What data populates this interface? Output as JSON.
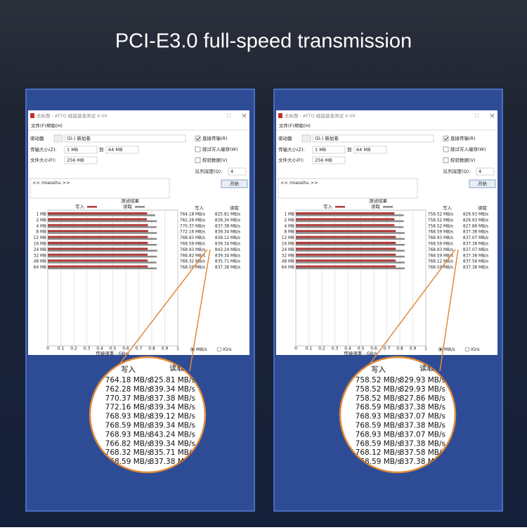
{
  "title": "PCI-E3.0 full-speed transmission",
  "xticks": [
    0,
    {
      "value": 100,
      "label": "0.1"
    },
    {
      "value": 200,
      "label": "0.2"
    },
    {
      "value": 300,
      "label": "0.3"
    },
    {
      "value": 400,
      "label": "0.4"
    },
    {
      "value": 500,
      "label": "0.5"
    },
    {
      "value": 600,
      "label": "0.6"
    },
    {
      "value": 700,
      "label": "0.7"
    },
    {
      "value": 800,
      "label": "0.8"
    },
    {
      "value": 900,
      "label": "0.9"
    },
    {
      "value": 1000,
      "label": "1"
    }
  ],
  "xlim": [
    0,
    1000
  ],
  "panels": [
    {
      "window_title": "无标题 - ATTO 磁盘基准测试 4.00",
      "menu": [
        "文件(F)",
        "帮助(H)"
      ],
      "drive_label": "驱动器",
      "drive_value": "(D:) 新加卷",
      "transfer_size_label": "传输大小(Z):",
      "transfer_from": "1 MB",
      "to_label": "到",
      "transfer_to": "64 MB",
      "file_size_label": "文件大小(F):",
      "file_size": "256 MB",
      "options": [
        {
          "label": "直接传输(R)",
          "checked": true
        },
        {
          "label": "绕过写入缓存(W)",
          "checked": false
        },
        {
          "label": "校验数据(V)",
          "checked": false
        }
      ],
      "queue_label": "队列深度(Q):",
      "queue": "4",
      "start": "开始",
      "log": "<< miaoshu >>",
      "results_title": "测试结果",
      "write_legend": "写入",
      "read_legend": "读取",
      "write_color": "#b03a3a",
      "read_color": "#8a8a8a",
      "x_axis_label": "传输速率 - GB/s",
      "radio": [
        "MB/s",
        "IO/s"
      ],
      "rows": [
        {
          "size": "1 MB",
          "write": 764.18,
          "write_label": "764.18 MB/s",
          "read": 825.81,
          "read_label": "825.81 MB/s"
        },
        {
          "size": "2 MB",
          "write": 762.28,
          "write_label": "762.28 MB/s",
          "read": 839.34,
          "read_label": "839.34 MB/s"
        },
        {
          "size": "4 MB",
          "write": 770.37,
          "write_label": "770.37 MB/s",
          "read": 837.38,
          "read_label": "837.38 MB/s"
        },
        {
          "size": "8 MB",
          "write": 772.16,
          "write_label": "772.16 MB/s",
          "read": 839.34,
          "read_label": "839.34 MB/s"
        },
        {
          "size": "12 MB",
          "write": 768.93,
          "write_label": "768.93 MB/s",
          "read": 839.12,
          "read_label": "839.12 MB/s"
        },
        {
          "size": "16 MB",
          "write": 768.59,
          "write_label": "768.59 MB/s",
          "read": 839.34,
          "read_label": "839.34 MB/s"
        },
        {
          "size": "24 MB",
          "write": 768.93,
          "write_label": "768.93 MB/s",
          "read": 843.24,
          "read_label": "843.24 MB/s"
        },
        {
          "size": "32 MB",
          "write": 766.82,
          "write_label": "766.82 MB/s",
          "read": 839.34,
          "read_label": "839.34 MB/s"
        },
        {
          "size": "48 MB",
          "write": 768.32,
          "write_label": "768.32 MB/s",
          "read": 835.71,
          "read_label": "835.71 MB/s"
        },
        {
          "size": "64 MB",
          "write": 768.59,
          "write_label": "768.59 MB/s",
          "read": 837.38,
          "read_label": "837.38 MB/s"
        }
      ]
    },
    {
      "window_title": "无标题 - ATTO 磁盘基准测试 4.00",
      "menu": [
        "文件(F)",
        "帮助(H)"
      ],
      "drive_label": "驱动器",
      "drive_value": "(D:) 新加卷",
      "transfer_size_label": "传输大小(Z):",
      "transfer_from": "1 MB",
      "to_label": "到",
      "transfer_to": "64 MB",
      "file_size_label": "文件大小(F):",
      "file_size": "256 MB",
      "options": [
        {
          "label": "直接传输(R)",
          "checked": true
        },
        {
          "label": "绕过写入缓存(W)",
          "checked": false
        },
        {
          "label": "校验数据(V)",
          "checked": false
        }
      ],
      "queue_label": "队列深度(Q):",
      "queue": "4",
      "start": "开始",
      "log": "<< miaoshu >>",
      "results_title": "测试结果",
      "write_legend": "写入",
      "read_legend": "读取",
      "write_color": "#b03a3a",
      "read_color": "#8a8a8a",
      "x_axis_label": "传输速率 - GB/s",
      "radio": [
        "MB/s",
        "IO/s"
      ],
      "rows": [
        {
          "size": "1 MB",
          "write": 758.52,
          "write_label": "758.52 MB/s",
          "read": 829.93,
          "read_label": "829.93 MB/s"
        },
        {
          "size": "2 MB",
          "write": 758.52,
          "write_label": "758.52 MB/s",
          "read": 829.93,
          "read_label": "829.93 MB/s"
        },
        {
          "size": "4 MB",
          "write": 758.52,
          "write_label": "758.52 MB/s",
          "read": 827.86,
          "read_label": "827.86 MB/s"
        },
        {
          "size": "8 MB",
          "write": 768.59,
          "write_label": "768.59 MB/s",
          "read": 837.38,
          "read_label": "837.38 MB/s"
        },
        {
          "size": "12 MB",
          "write": 768.93,
          "write_label": "768.93 MB/s",
          "read": 837.07,
          "read_label": "837.07 MB/s"
        },
        {
          "size": "16 MB",
          "write": 768.59,
          "write_label": "768.59 MB/s",
          "read": 837.38,
          "read_label": "837.38 MB/s"
        },
        {
          "size": "24 MB",
          "write": 768.93,
          "write_label": "768.93 MB/s",
          "read": 837.07,
          "read_label": "837.07 MB/s"
        },
        {
          "size": "32 MB",
          "write": 768.59,
          "write_label": "768.59 MB/s",
          "read": 837.38,
          "read_label": "837.38 MB/s"
        },
        {
          "size": "48 MB",
          "write": 768.12,
          "write_label": "768.12 MB/s",
          "read": 837.58,
          "read_label": "837.58 MB/s"
        },
        {
          "size": "64 MB",
          "write": 768.59,
          "write_label": "768.59 MB/s",
          "read": 837.38,
          "read_label": "837.38 MB/s"
        }
      ]
    }
  ]
}
